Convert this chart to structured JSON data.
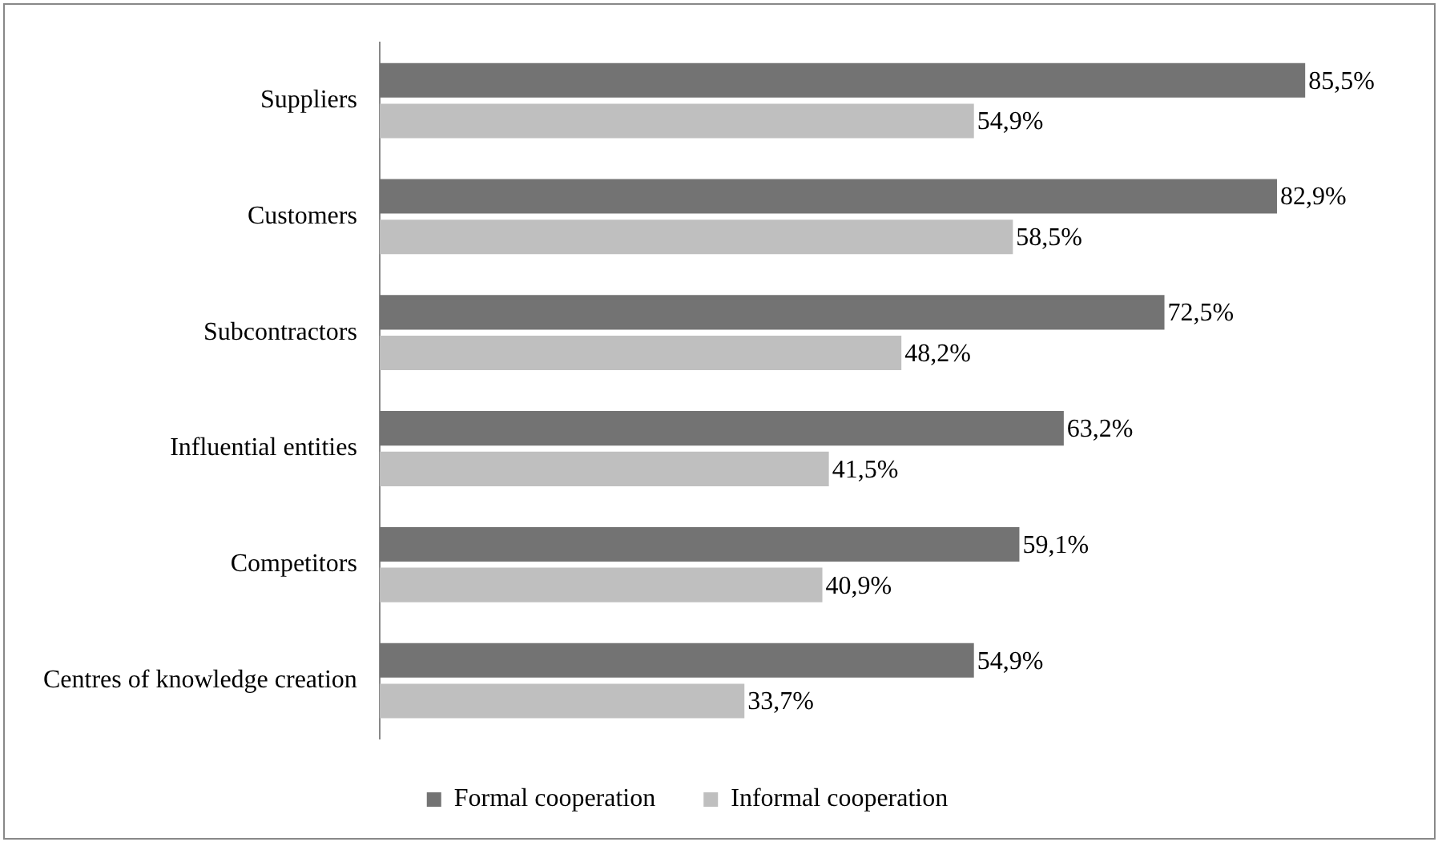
{
  "chart_data": {
    "type": "bar",
    "orientation": "horizontal",
    "categories": [
      "Suppliers",
      "Customers",
      "Subcontractors",
      "Influential entities",
      "Competitors",
      "Centres of knowledge creation"
    ],
    "series": [
      {
        "name": "Formal cooperation",
        "color": "#737373",
        "values": [
          85.5,
          82.9,
          72.5,
          63.2,
          59.1,
          54.9
        ],
        "value_labels": [
          "85,5%",
          "82,9%",
          "72,5%",
          "63,2%",
          "59,1%",
          "54,9%"
        ]
      },
      {
        "name": "Informal cooperation",
        "color": "#bfbfbf",
        "values": [
          54.9,
          58.5,
          48.2,
          41.5,
          40.9,
          33.7
        ],
        "value_labels": [
          "54,9%",
          "58,5%",
          "48,2%",
          "41,5%",
          "40,9%",
          "33,7%"
        ]
      }
    ],
    "legend": "bottom",
    "grid": false,
    "tick_labels": "y"
  }
}
